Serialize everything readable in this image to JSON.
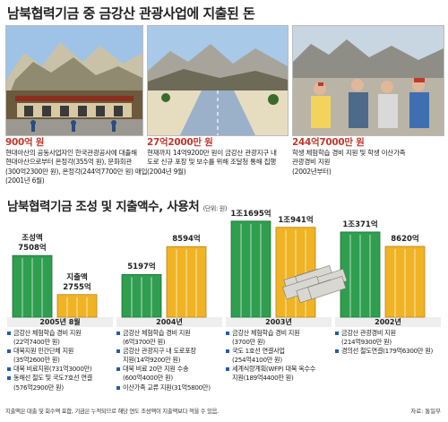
{
  "title": "남북협력기금 중 금강산 관광사업에 지출된 돈",
  "photos": [
    {
      "amount": "900억 원",
      "desc": "현대아산의 공동사업자인 한국관광공사에 대출해\n현대아산으로부터 온정각(355억 원), 문화회관\n(300억2300만 원), 온정각(244억7700만 원) 매입\n(2001년 6월)"
    },
    {
      "amount": "27억2000만 원",
      "desc": "현재까지 14억9200만 원이 금강산 관광지구 내\n도로 신규 포장 및 보수를 위해 조달청 통해 집행\n(2004년 9월)"
    },
    {
      "amount": "244억7000만 원",
      "desc": "학생 체험학습 경비 지원 및 학생 이산가족\n관광경비 지원\n(2002년부터)"
    }
  ],
  "subtitle": "남북협력기금 조성 및 지출액수, 사용처",
  "unit": "(단위: 원)",
  "chart_data": {
    "type": "bar",
    "categories": [
      "2005년 8월",
      "2004년",
      "2003년",
      "2002년"
    ],
    "series": [
      {
        "name": "조성액",
        "values": [
          7508,
          5197,
          11695,
          10371
        ],
        "labels": [
          "7508억",
          "5197억",
          "1조1695억",
          "1조371억"
        ]
      },
      {
        "name": "지출액",
        "values": [
          2755,
          8594,
          10941,
          8620
        ],
        "labels": [
          "2755억",
          "8594억",
          "1조941억",
          "8620억"
        ]
      }
    ],
    "bar_inline_labels": [
      "조성액",
      "지출액"
    ]
  },
  "uses": [
    [
      "금강산 체험학습 경비 지원\n(22억7400만 원)",
      "대북지원 민간단체 지원\n(35억2600만 원)",
      "대북 비료지원(731억3000만)",
      "동해선 철도 및 국도7호선 연결\n(576억2900만 원)"
    ],
    [
      "금강산 체험학습 경비 지원\n(6억3700만 원)",
      "금강산 관광지구 내 도로포장\n지원(14억9200만 원)",
      "대북 비료 20만 지원 수송\n(600억4000만 원)",
      "이산가족 교류 지원(31억5800만)"
    ],
    [
      "금강산 체험학습 경비 지원\n(3700만 원)",
      "국도 1호선 연결사업\n(254억4100만 원)",
      "세계식량계획(WFP) 대북 옥수수\n지원(189억4400만 원)"
    ],
    [
      "금강산 관광경비 지원\n(214억9300만 원)",
      "경의선 철도연결(179억6300만 원)"
    ]
  ],
  "footnote": "지출액은 대출 및 회수액 포함, 기금은 누적되므로 해당 연도 조성액이 지출액보다 적을 수 있음.",
  "source": "자료: 통일부",
  "colors": {
    "fund": "#2f9e4f",
    "spend": "#f0b323",
    "amount": "#c0392b",
    "bullet": "#1f5fa8"
  }
}
